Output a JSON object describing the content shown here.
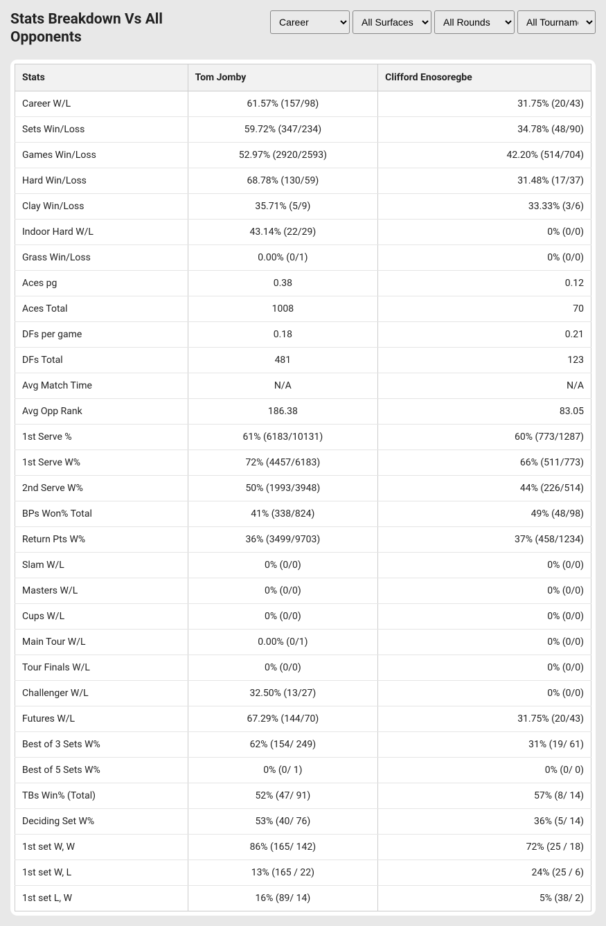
{
  "header": {
    "title": "Stats Breakdown Vs All Opponents"
  },
  "filters": {
    "period": {
      "selected": "Career"
    },
    "surface": {
      "selected": "All Surfaces"
    },
    "rounds": {
      "selected": "All Rounds"
    },
    "tournaments": {
      "selected": "All Tournaments"
    }
  },
  "table": {
    "columns": {
      "stats": "Stats",
      "player1": "Tom Jomby",
      "player2": "Clifford Enosoregbe"
    },
    "rows": [
      {
        "label": "Career W/L",
        "p1": "61.57% (157/98)",
        "p2": "31.75% (20/43)"
      },
      {
        "label": "Sets Win/Loss",
        "p1": "59.72% (347/234)",
        "p2": "34.78% (48/90)"
      },
      {
        "label": "Games Win/Loss",
        "p1": "52.97% (2920/2593)",
        "p2": "42.20% (514/704)"
      },
      {
        "label": "Hard Win/Loss",
        "p1": "68.78% (130/59)",
        "p2": "31.48% (17/37)"
      },
      {
        "label": "Clay Win/Loss",
        "p1": "35.71% (5/9)",
        "p2": "33.33% (3/6)"
      },
      {
        "label": "Indoor Hard W/L",
        "p1": "43.14% (22/29)",
        "p2": "0% (0/0)"
      },
      {
        "label": "Grass Win/Loss",
        "p1": "0.00% (0/1)",
        "p2": "0% (0/0)"
      },
      {
        "label": "Aces pg",
        "p1": "0.38",
        "p2": "0.12"
      },
      {
        "label": "Aces Total",
        "p1": "1008",
        "p2": "70"
      },
      {
        "label": "DFs per game",
        "p1": "0.18",
        "p2": "0.21"
      },
      {
        "label": "DFs Total",
        "p1": "481",
        "p2": "123"
      },
      {
        "label": "Avg Match Time",
        "p1": "N/A",
        "p2": "N/A"
      },
      {
        "label": "Avg Opp Rank",
        "p1": "186.38",
        "p2": "83.05"
      },
      {
        "label": "1st Serve %",
        "p1": "61% (6183/10131)",
        "p2": "60% (773/1287)"
      },
      {
        "label": "1st Serve W%",
        "p1": "72% (4457/6183)",
        "p2": "66% (511/773)"
      },
      {
        "label": "2nd Serve W%",
        "p1": "50% (1993/3948)",
        "p2": "44% (226/514)"
      },
      {
        "label": "BPs Won% Total",
        "p1": "41% (338/824)",
        "p2": "49% (48/98)"
      },
      {
        "label": "Return Pts W%",
        "p1": "36% (3499/9703)",
        "p2": "37% (458/1234)"
      },
      {
        "label": "Slam W/L",
        "p1": "0% (0/0)",
        "p2": "0% (0/0)"
      },
      {
        "label": "Masters W/L",
        "p1": "0% (0/0)",
        "p2": "0% (0/0)"
      },
      {
        "label": "Cups W/L",
        "p1": "0% (0/0)",
        "p2": "0% (0/0)"
      },
      {
        "label": "Main Tour W/L",
        "p1": "0.00% (0/1)",
        "p2": "0% (0/0)"
      },
      {
        "label": "Tour Finals W/L",
        "p1": "0% (0/0)",
        "p2": "0% (0/0)"
      },
      {
        "label": "Challenger W/L",
        "p1": "32.50% (13/27)",
        "p2": "0% (0/0)"
      },
      {
        "label": "Futures W/L",
        "p1": "67.29% (144/70)",
        "p2": "31.75% (20/43)"
      },
      {
        "label": "Best of 3 Sets W%",
        "p1": "62% (154/ 249)",
        "p2": "31% (19/ 61)"
      },
      {
        "label": "Best of 5 Sets W%",
        "p1": "0% (0/ 1)",
        "p2": "0% (0/ 0)"
      },
      {
        "label": "TBs Win% (Total)",
        "p1": "52% (47/ 91)",
        "p2": "57% (8/ 14)"
      },
      {
        "label": "Deciding Set W%",
        "p1": "53% (40/ 76)",
        "p2": "36% (5/ 14)"
      },
      {
        "label": "1st set W, W",
        "p1": "86% (165/ 142)",
        "p2": "72% (25 / 18)"
      },
      {
        "label": "1st set W, L",
        "p1": "13% (165 / 22)",
        "p2": "24% (25 / 6)"
      },
      {
        "label": "1st set L, W",
        "p1": "16% (89/ 14)",
        "p2": "5% (38/ 2)"
      }
    ]
  }
}
